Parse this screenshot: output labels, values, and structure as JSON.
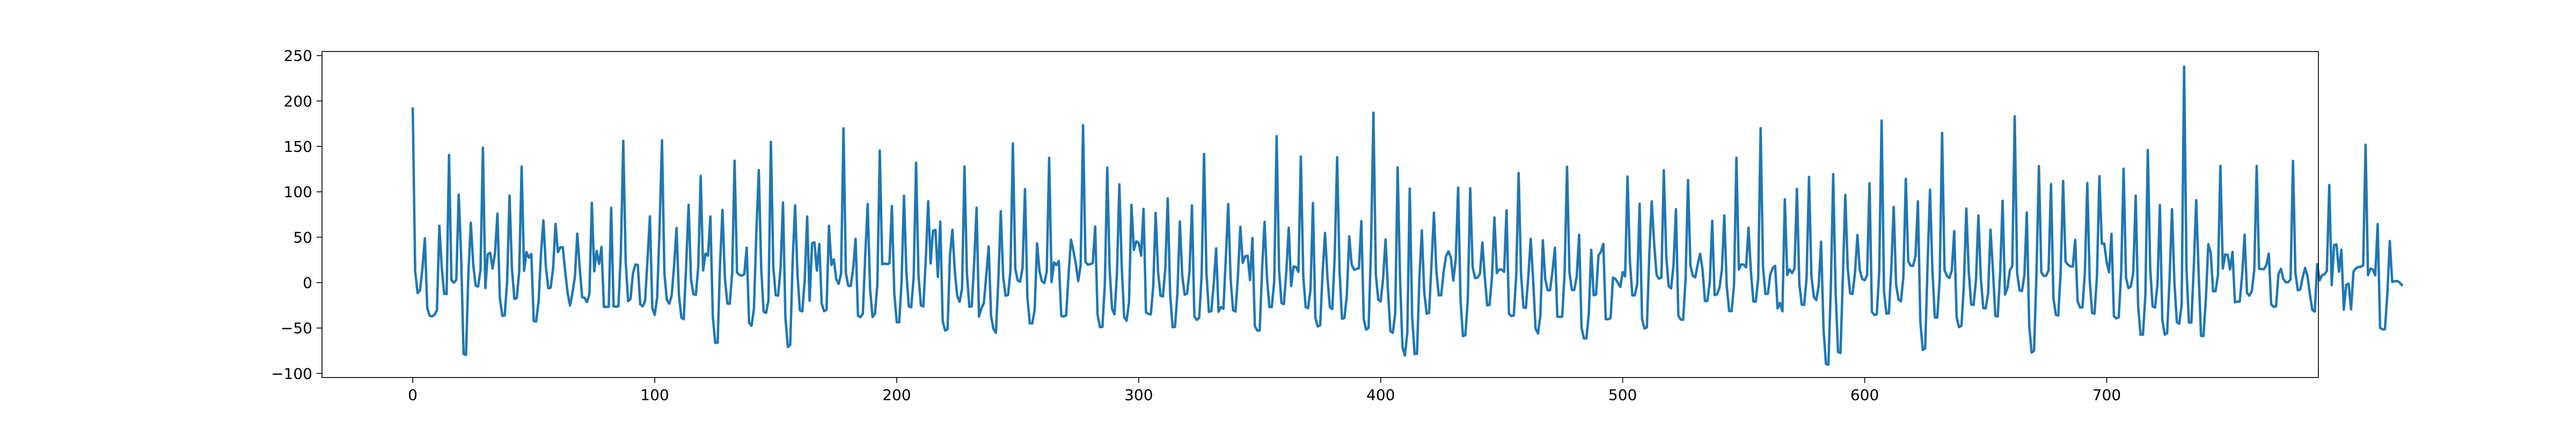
{
  "chart_data": {
    "type": "line",
    "title": "",
    "xlabel": "",
    "ylabel": "",
    "xlim": [
      -37.5,
      787.5
    ],
    "ylim": [
      -104.5,
      254.5
    ],
    "xticks": [
      0,
      100,
      200,
      300,
      400,
      500,
      600,
      700
    ],
    "yticks": [
      -100,
      -50,
      0,
      50,
      100,
      150,
      200,
      250
    ],
    "xtick_labels": [
      "0",
      "100",
      "200",
      "300",
      "400",
      "500",
      "600",
      "700"
    ],
    "ytick_labels": [
      "−100",
      "−50",
      "0",
      "50",
      "100",
      "150",
      "200",
      "250"
    ],
    "grid": false,
    "legend": false,
    "series": [
      {
        "color": "#1f77b4",
        "x_start": 0,
        "x_step": 1,
        "values": [
          191.6,
          12.6,
          -11.5,
          -8.4,
          15.4,
          48.8,
          -27.9,
          -36.6,
          -37.1,
          -35.5,
          -30.3,
          62.5,
          16.1,
          -12.4,
          -12.5,
          140.6,
          2.7,
          -0.1,
          3.2,
          96.9,
          29.1,
          -78.5,
          -79.7,
          10.4,
          66.0,
          19.6,
          -3.3,
          -4.4,
          14.0,
          148.7,
          -6.0,
          31.2,
          32.8,
          15.5,
          32.9,
          75.9,
          -17.0,
          -36.5,
          -36.1,
          1.6,
          95.9,
          15.1,
          -18.1,
          -17.0,
          12.6,
          127.8,
          13.0,
          33.7,
          27.5,
          31.6,
          -42.4,
          -42.7,
          -20.6,
          31.5,
          68.5,
          18.0,
          -6.2,
          -5.6,
          15.8,
          64.6,
          33.5,
          38.8,
          38.9,
          12.5,
          -11.3,
          -25.3,
          -11.2,
          6.1,
          54.0,
          16.2,
          -16.1,
          -16.7,
          -21.4,
          -12.8,
          87.8,
          12.4,
          34.9,
          20.6,
          39.3,
          -26.8,
          -26.7,
          -26.6,
          82.4,
          -26.1,
          -26.4,
          -26.1,
          32.6,
          156.1,
          22.8,
          -20.4,
          -18.1,
          10.3,
          19.9,
          19.6,
          -23.8,
          -26.2,
          -20.4,
          24.6,
          73.0,
          -28.0,
          -35.6,
          -16.7,
          60.1,
          156.7,
          10.0,
          -18.7,
          -23.3,
          -14.3,
          18.2,
          60.2,
          -13.5,
          -38.5,
          -40.3,
          20.2,
          85.7,
          3.5,
          -12.8,
          -13.5,
          18.3,
          117.5,
          13.4,
          31.9,
          29.6,
          72.9,
          -37.3,
          -66.4,
          -66.0,
          21.0,
          80.1,
          4.8,
          -23.0,
          -23.3,
          10.3,
          134.3,
          11.1,
          8.4,
          7.6,
          9.3,
          38.5,
          -44.3,
          -47.6,
          -28.6,
          55.3,
          123.8,
          15.8,
          -32.1,
          -33.3,
          -19.6,
          154.9,
          17.3,
          -13.9,
          -14.4,
          15.8,
          88.2,
          -38.7,
          -70.9,
          -68.6,
          24.2,
          85.1,
          8.6,
          -30.5,
          -31.7,
          4.0,
          72.8,
          -20.0,
          43.2,
          44.4,
          13.3,
          42.4,
          -23.1,
          -31.5,
          -29.8,
          62.6,
          19.4,
          25.6,
          3.8,
          -1.4,
          9.8,
          169.9,
          10.0,
          -3.6,
          -3.7,
          15.6,
          48.2,
          -36.5,
          -38.0,
          -34.3,
          30.5,
          86.5,
          -7.2,
          -37.9,
          -34.4,
          -2.0,
          145.4,
          20.2,
          21.0,
          20.3,
          21.2,
          84.4,
          -11.9,
          -43.5,
          -43.8,
          0.2,
          95.7,
          10.4,
          -26.2,
          -27.2,
          5.8,
          132.0,
          8.1,
          -25.1,
          -26.2,
          24.7,
          89.7,
          21.0,
          57.1,
          58.1,
          6.1,
          67.1,
          -42.4,
          -52.8,
          -51.5,
          30.1,
          58.2,
          12.8,
          -14.5,
          -21.2,
          -6.5,
          127.8,
          11.4,
          -26.5,
          -26.3,
          21.6,
          82.5,
          -37.5,
          -28.1,
          -22.7,
          8.0,
          39.9,
          -37.3,
          -51.1,
          -55.4,
          3.2,
          78.6,
          6.1,
          -14.4,
          -13.7,
          13.4,
          153.3,
          15.1,
          2.3,
          1.0,
          16.5,
          102.9,
          -16.3,
          -44.9,
          -45.1,
          -30.3,
          43.3,
          12.6,
          1.5,
          -0.6,
          12.2,
          137.3,
          0.6,
          22.3,
          19.3,
          23.8,
          -36.5,
          -37.3,
          -36.1,
          8.0,
          47.3,
          35.4,
          20.9,
          1.6,
          18.9,
          173.4,
          22.7,
          19.7,
          20.4,
          21.4,
          61.8,
          -35.4,
          -49.0,
          -48.8,
          -2.2,
          126.6,
          13.8,
          -29.0,
          -34.9,
          9.6,
          108.2,
          17.0,
          -38.3,
          -42.0,
          -21.7,
          85.7,
          36.0,
          45.5,
          43.7,
          29.7,
          81.2,
          -32.7,
          -34.4,
          -35.0,
          -4.4,
          76.8,
          12.4,
          -14.4,
          -15.3,
          16.0,
          92.8,
          -13.0,
          -49.1,
          -48.7,
          -11.8,
          67.4,
          7.4,
          -13.3,
          -12.1,
          12.7,
          85.0,
          -37.0,
          -41.1,
          -38.7,
          8.0,
          141.7,
          11.0,
          -32.2,
          -31.5,
          -1.7,
          37.7,
          -32.1,
          -26.9,
          -28.8,
          27.1,
          86.5,
          3.0,
          -30.5,
          -31.9,
          6.9,
          61.5,
          21.7,
          29.0,
          29.6,
          2.8,
          49.1,
          -48.0,
          -52.8,
          -52.7,
          15.6,
          66.8,
          6.4,
          -26.9,
          -26.8,
          1.3,
          161.3,
          14.6,
          -22.6,
          -23.6,
          12.5,
          60.5,
          -3.7,
          17.8,
          17.2,
          11.8,
          138.8,
          7.5,
          -27.1,
          -28.1,
          -7.7,
          87.7,
          -38.6,
          -48.3,
          -47.0,
          11.4,
          54.7,
          6.3,
          -27.1,
          -29.1,
          29.3,
          138.1,
          13.2,
          -39.9,
          -38.9,
          -14.3,
          50.9,
          20.0,
          14.2,
          14.9,
          15.9,
          67.7,
          -40.5,
          -51.8,
          -49.7,
          37.9,
          187.1,
          8.7,
          -18.9,
          -20.7,
          4.8,
          47.5,
          -8.5,
          -53.6,
          -55.2,
          -33.7,
          126.9,
          4.5,
          -71.3,
          -80.3,
          -55.0,
          103.6,
          -37.7,
          -78.7,
          -78.3,
          6.2,
          57.5,
          -11.1,
          -34.2,
          -33.3,
          20.9,
          77.0,
          12.9,
          -14.0,
          -13.9,
          11.6,
          29.2,
          34.5,
          27.6,
          2.3,
          25.3,
          104.6,
          -19.6,
          -59.0,
          -57.8,
          -18.6,
          103.8,
          17.2,
          4.9,
          5.5,
          9.6,
          44.1,
          6.7,
          -25.0,
          -24.5,
          6.6,
          71.7,
          10.5,
          14.5,
          14.3,
          11.8,
          79.8,
          -34.3,
          -36.8,
          -36.2,
          8.0,
          120.6,
          9.2,
          -27.4,
          -27.9,
          6.7,
          48.3,
          2.9,
          -50.6,
          -56.1,
          -35.9,
          46.6,
          3.6,
          -8.4,
          -8.4,
          12.7,
          38.5,
          -37.5,
          -37.8,
          -37.4,
          10.8,
          127.6,
          11.3,
          -8.0,
          -8.1,
          6.7,
          52.6,
          -49.7,
          -61.5,
          -61.4,
          -34.3,
          36.1,
          -14.0,
          -13.1,
          30.1,
          33.9,
          42.7,
          -40.3,
          -40.2,
          -39.2,
          5.6,
          4.0,
          0.0,
          -4.7,
          11.6,
          6.8,
          116.8,
          23.0,
          -14.1,
          -14.1,
          -1.6,
          86.9,
          -40.2,
          -50.6,
          -49.3,
          31.0,
          89.4,
          43.2,
          8.6,
          4.3,
          5.5,
          123.7,
          29.1,
          -4.0,
          -6.4,
          19.0,
          80.8,
          -36.1,
          -40.8,
          -40.9,
          4.8,
          112.9,
          18.6,
          7.4,
          5.8,
          20.2,
          31.7,
          14.2,
          -20.4,
          -20.1,
          0.6,
          68.1,
          -13.9,
          -12.8,
          -5.7,
          14.3,
          74.0,
          -4.2,
          -31.2,
          -31.4,
          -2.9,
          137.5,
          14.4,
          20.1,
          19.8,
          16.8,
          60.4,
          11.7,
          -20.8,
          -20.9,
          4.3,
          170.0,
          17.0,
          -12.5,
          -12.3,
          9.0,
          16.0,
          18.5,
          -28.4,
          -22.4,
          -31.6,
          91.8,
          8.5,
          14.5,
          10.4,
          15.6,
          103.2,
          -1.5,
          -24.3,
          -24.6,
          5.0,
          116.4,
          6.4,
          -15.7,
          -19.3,
          -3.4,
          45.1,
          -51.2,
          -89.5,
          -90.4,
          -7.3,
          119.4,
          -10.9,
          -76.4,
          -77.5,
          7.3,
          96.6,
          16.0,
          -12.0,
          -12.3,
          11.0,
          52.4,
          13.6,
          3.9,
          2.6,
          7.9,
          109.4,
          -32.2,
          -35.6,
          -34.9,
          11.4,
          178.5,
          -10.6,
          -34.1,
          -33.9,
          15.5,
          83.4,
          -2.5,
          -18.7,
          -20.6,
          6.4,
          114.3,
          23.5,
          18.7,
          18.4,
          29.1,
          89.5,
          -42.7,
          -74.1,
          -72.5,
          19.8,
          102.3,
          12.9,
          -38.4,
          -38.5,
          3.7,
          164.9,
          13.8,
          7.4,
          5.0,
          13.4,
          56.7,
          -38.4,
          -49.0,
          -47.5,
          -1.8,
          81.6,
          12.8,
          -24.2,
          -24.6,
          2.9,
          73.9,
          5.0,
          -28.1,
          -28.3,
          -12.2,
          58.2,
          13.8,
          -36.7,
          -37.2,
          11.0,
          90.1,
          -13.3,
          -6.0,
          13.6,
          18.1,
          183.1,
          10.7,
          -8.5,
          -9.3,
          8.2,
          77.2,
          -47.7,
          -77.0,
          -75.0,
          10.5,
          128.2,
          11.4,
          7.4,
          7.6,
          13.5,
          108.4,
          -17.1,
          -35.4,
          -36.3,
          12.1,
          111.8,
          23.3,
          19.8,
          17.9,
          17.6,
          47.1,
          -20.5,
          -27.3,
          -27.3,
          10.8,
          109.6,
          2.5,
          -33.5,
          -34.1,
          8.0,
          117.2,
          42.7,
          43.0,
          22.4,
          11.4,
          53.7,
          -36.9,
          -39.4,
          -38.2,
          11.4,
          125.4,
          5.3,
          -6.1,
          -4.3,
          11.2,
          95.7,
          -25.2,
          -57.3,
          -57.4,
          -13.5,
          146.1,
          15.4,
          -26.3,
          -27.4,
          -1.7,
          85.4,
          -41.5,
          -57.3,
          -55.5,
          4.7,
          80.9,
          0.0,
          -43.4,
          -45.3,
          -23.9,
          237.8,
          14.2,
          -44.0,
          -44.0,
          16.8,
          90.8,
          12.1,
          -58.6,
          -58.8,
          -17.9,
          42.4,
          33.0,
          -9.6,
          -9.3,
          8.4,
          128.6,
          15.5,
          31.0,
          30.6,
          14.4,
          33.8,
          -21.7,
          -20.9,
          -20.8,
          8.6,
          52.8,
          -11.4,
          -14.5,
          -9.0,
          14.0,
          128.4,
          15.3,
          14.9,
          14.8,
          19.4,
          31.9,
          -24.0,
          -26.6,
          -26.2,
          9.3,
          15.2,
          4.1,
          0.4,
          0.4,
          3.6,
          134.0,
          10.9,
          -8.5,
          -7.6,
          5.8,
          16.2,
          7.2,
          -13.0,
          -30.1,
          -31.9,
          20.2,
          2.5,
          8.1,
          9.1,
          12.8,
          107.5,
          -2.8,
          41.5,
          42.0,
          11.9,
          36.2,
          -29.8,
          -2.3,
          -1.3,
          -29.4,
          12.3,
          15.7,
          17.2,
          17.3,
          19.2,
          151.8,
          8.2,
          15.3,
          14.5,
          8.0,
          64.5,
          -49.8,
          -51.5,
          -51.3,
          -12.1,
          45.8,
          0.7,
          1.5,
          1.8,
          0.3,
          -2.6
        ]
      }
    ]
  }
}
